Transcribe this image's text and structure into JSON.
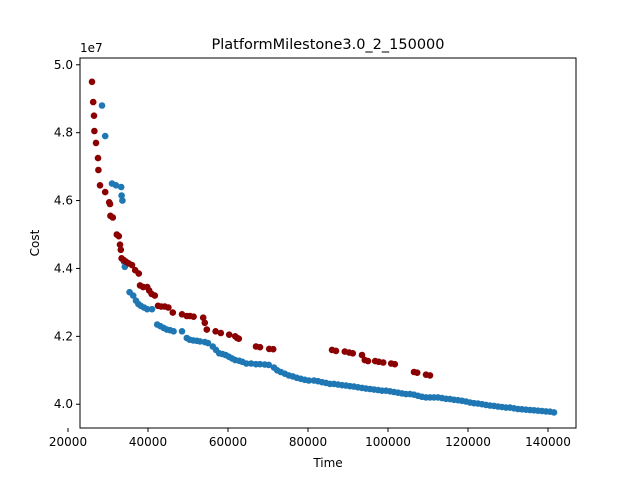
{
  "chart_data": {
    "type": "scatter",
    "title": "PlatformMilestone3.0_2_150000",
    "xlabel": "Time",
    "ylabel": "Cost",
    "y_offset_label": "1e7",
    "xlim": [
      23000,
      147000
    ],
    "ylim": [
      3.93,
      5.02
    ],
    "x_ticks": [
      20000,
      40000,
      60000,
      80000,
      100000,
      120000,
      140000
    ],
    "x_tick_labels": [
      "20000",
      "40000",
      "60000",
      "80000",
      "100000",
      "120000",
      "140000"
    ],
    "y_ticks": [
      4.0,
      4.2,
      4.4,
      4.6,
      4.8,
      5.0
    ],
    "y_tick_labels": [
      "4.0",
      "4.2",
      "4.4",
      "4.6",
      "4.8",
      "5.0"
    ],
    "grid": false,
    "colors": {
      "blue": "#1f77b4",
      "red": "#8b0000"
    },
    "series": [
      {
        "color": "#1f77b4",
        "points": [
          [
            28500,
            4.88
          ],
          [
            29300,
            4.79
          ],
          [
            31000,
            4.65
          ],
          [
            32000,
            4.645
          ],
          [
            33300,
            4.64
          ],
          [
            33400,
            4.615
          ],
          [
            33600,
            4.6
          ],
          [
            34000,
            4.42
          ],
          [
            34200,
            4.405
          ],
          [
            35400,
            4.33
          ],
          [
            36300,
            4.32
          ],
          [
            37000,
            4.305
          ],
          [
            37600,
            4.295
          ],
          [
            38200,
            4.29
          ],
          [
            39000,
            4.285
          ],
          [
            39800,
            4.28
          ],
          [
            41000,
            4.28
          ],
          [
            42300,
            4.235
          ],
          [
            43100,
            4.23
          ],
          [
            43900,
            4.225
          ],
          [
            44700,
            4.22
          ],
          [
            45500,
            4.218
          ],
          [
            46400,
            4.215
          ],
          [
            48500,
            4.215
          ],
          [
            49700,
            4.195
          ],
          [
            50400,
            4.19
          ],
          [
            51300,
            4.188
          ],
          [
            52200,
            4.187
          ],
          [
            53000,
            4.185
          ],
          [
            54200,
            4.183
          ],
          [
            55000,
            4.18
          ],
          [
            56200,
            4.17
          ],
          [
            57000,
            4.16
          ],
          [
            57800,
            4.15
          ],
          [
            58600,
            4.148
          ],
          [
            59400,
            4.145
          ],
          [
            60200,
            4.14
          ],
          [
            61000,
            4.135
          ],
          [
            61800,
            4.13
          ],
          [
            62800,
            4.128
          ],
          [
            63600,
            4.125
          ],
          [
            64600,
            4.12
          ],
          [
            65800,
            4.12
          ],
          [
            67000,
            4.118
          ],
          [
            68000,
            4.118
          ],
          [
            69200,
            4.117
          ],
          [
            70200,
            4.116
          ],
          [
            71500,
            4.108
          ],
          [
            72300,
            4.1
          ],
          [
            73200,
            4.095
          ],
          [
            74200,
            4.09
          ],
          [
            75200,
            4.085
          ],
          [
            76200,
            4.082
          ],
          [
            77200,
            4.078
          ],
          [
            78200,
            4.075
          ],
          [
            79200,
            4.072
          ],
          [
            80200,
            4.07
          ],
          [
            81500,
            4.07
          ],
          [
            82500,
            4.068
          ],
          [
            83500,
            4.065
          ],
          [
            84500,
            4.063
          ],
          [
            85500,
            4.06
          ],
          [
            86500,
            4.06
          ],
          [
            87500,
            4.058
          ],
          [
            88500,
            4.056
          ],
          [
            89500,
            4.055
          ],
          [
            90500,
            4.053
          ],
          [
            91500,
            4.052
          ],
          [
            92500,
            4.05
          ],
          [
            93500,
            4.048
          ],
          [
            94500,
            4.046
          ],
          [
            95500,
            4.045
          ],
          [
            96500,
            4.043
          ],
          [
            97500,
            4.042
          ],
          [
            98500,
            4.04
          ],
          [
            99500,
            4.04
          ],
          [
            100500,
            4.038
          ],
          [
            101500,
            4.036
          ],
          [
            102500,
            4.034
          ],
          [
            103500,
            4.032
          ],
          [
            104500,
            4.03
          ],
          [
            105500,
            4.03
          ],
          [
            106500,
            4.028
          ],
          [
            107500,
            4.025
          ],
          [
            108500,
            4.022
          ],
          [
            109500,
            4.02
          ],
          [
            110500,
            4.02
          ],
          [
            111500,
            4.02
          ],
          [
            112500,
            4.02
          ],
          [
            113500,
            4.018
          ],
          [
            114500,
            4.016
          ],
          [
            115500,
            4.015
          ],
          [
            116500,
            4.013
          ],
          [
            117500,
            4.012
          ],
          [
            118500,
            4.01
          ],
          [
            119500,
            4.008
          ],
          [
            120500,
            4.005
          ],
          [
            121500,
            4.003
          ],
          [
            122500,
            4.002
          ],
          [
            123500,
            4.0
          ],
          [
            124500,
            3.998
          ],
          [
            125500,
            3.996
          ],
          [
            126500,
            3.995
          ],
          [
            127500,
            3.993
          ],
          [
            128500,
            3.992
          ],
          [
            129500,
            3.99
          ],
          [
            130500,
            3.99
          ],
          [
            131500,
            3.988
          ],
          [
            132500,
            3.986
          ],
          [
            133500,
            3.985
          ],
          [
            134500,
            3.984
          ],
          [
            135500,
            3.983
          ],
          [
            136500,
            3.982
          ],
          [
            137500,
            3.981
          ],
          [
            138500,
            3.98
          ],
          [
            139500,
            3.979
          ],
          [
            140500,
            3.978
          ],
          [
            141500,
            3.976
          ]
        ]
      },
      {
        "color": "#8b0000",
        "points": [
          [
            26000,
            4.95
          ],
          [
            26300,
            4.89
          ],
          [
            26500,
            4.85
          ],
          [
            26600,
            4.805
          ],
          [
            27000,
            4.77
          ],
          [
            27500,
            4.725
          ],
          [
            27600,
            4.69
          ],
          [
            28000,
            4.645
          ],
          [
            29300,
            4.625
          ],
          [
            30300,
            4.595
          ],
          [
            30500,
            4.59
          ],
          [
            30600,
            4.555
          ],
          [
            31200,
            4.55
          ],
          [
            32200,
            4.5
          ],
          [
            32700,
            4.495
          ],
          [
            33000,
            4.47
          ],
          [
            33200,
            4.455
          ],
          [
            33400,
            4.43
          ],
          [
            33900,
            4.425
          ],
          [
            34500,
            4.42
          ],
          [
            35200,
            4.415
          ],
          [
            36000,
            4.41
          ],
          [
            36800,
            4.395
          ],
          [
            37700,
            4.385
          ],
          [
            38000,
            4.35
          ],
          [
            38800,
            4.345
          ],
          [
            39800,
            4.345
          ],
          [
            40300,
            4.335
          ],
          [
            40900,
            4.325
          ],
          [
            41700,
            4.32
          ],
          [
            42500,
            4.29
          ],
          [
            43300,
            4.288
          ],
          [
            44200,
            4.288
          ],
          [
            45100,
            4.285
          ],
          [
            46200,
            4.27
          ],
          [
            48500,
            4.265
          ],
          [
            49700,
            4.26
          ],
          [
            50500,
            4.26
          ],
          [
            51400,
            4.258
          ],
          [
            53800,
            4.255
          ],
          [
            54200,
            4.24
          ],
          [
            54700,
            4.22
          ],
          [
            56900,
            4.215
          ],
          [
            58200,
            4.21
          ],
          [
            60300,
            4.205
          ],
          [
            61800,
            4.2
          ],
          [
            62300,
            4.195
          ],
          [
            62700,
            4.193
          ],
          [
            67000,
            4.17
          ],
          [
            68000,
            4.168
          ],
          [
            70300,
            4.163
          ],
          [
            71300,
            4.162
          ],
          [
            86000,
            4.16
          ],
          [
            87000,
            4.157
          ],
          [
            89200,
            4.155
          ],
          [
            90300,
            4.152
          ],
          [
            91200,
            4.15
          ],
          [
            93500,
            4.145
          ],
          [
            94200,
            4.13
          ],
          [
            95000,
            4.127
          ],
          [
            96800,
            4.127
          ],
          [
            97700,
            4.125
          ],
          [
            98800,
            4.123
          ],
          [
            100800,
            4.12
          ],
          [
            101700,
            4.118
          ],
          [
            106500,
            4.095
          ],
          [
            107300,
            4.093
          ],
          [
            109500,
            4.087
          ],
          [
            110500,
            4.085
          ]
        ]
      }
    ]
  }
}
